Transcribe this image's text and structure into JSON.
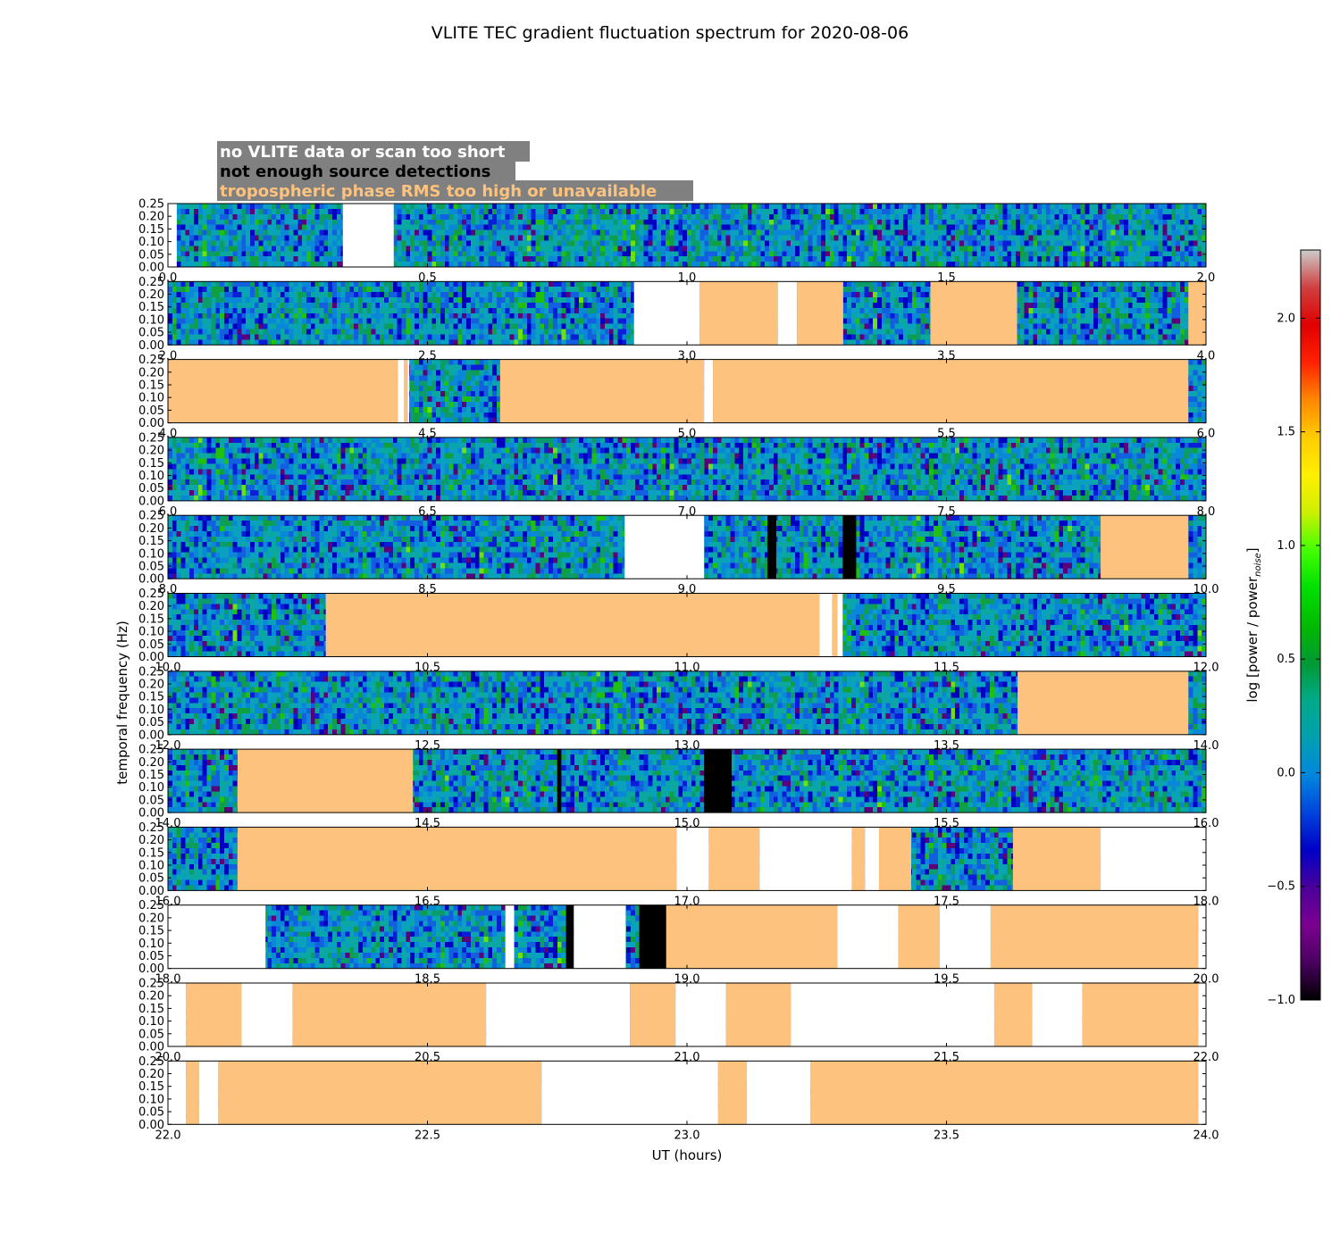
{
  "chart_data": {
    "type": "heatmap",
    "title": "VLITE TEC gradient fluctuation spectrum for 2020-08-06",
    "xlabel": "UT (hours)",
    "ylabel": "temporal frequency (Hz)",
    "ylim": [
      0,
      0.25
    ],
    "y_ticks": [
      "0.00",
      "0.05",
      "0.10",
      "0.15",
      "0.20",
      "0.25"
    ],
    "colorbar": {
      "label": "log [power / power",
      "label_sub": "noise",
      "label_close": "]",
      "range": [
        -1.0,
        2.3
      ],
      "ticks": [
        "−1.0",
        "−0.5",
        "0.0",
        "0.5",
        "1.0",
        "1.5",
        "2.0"
      ],
      "tick_values": [
        -1.0,
        -0.5,
        0.0,
        0.5,
        1.0,
        1.5,
        2.0
      ]
    },
    "legend": {
      "entries": [
        {
          "label": "no VLITE data or scan too short",
          "color": "#ffffff"
        },
        {
          "label": "not enough source detections",
          "color": "#000000"
        },
        {
          "label": "tropospheric phase RMS too high or unavailable",
          "color": "#fdc37e"
        }
      ],
      "background": "#808080",
      "placement": "top-left"
    },
    "mask_colors": {
      "nodata": "#ffffff",
      "nodet": "#000000",
      "tropo": "#fdc37e"
    },
    "panels": [
      {
        "xlim": [
          0.0,
          2.0
        ],
        "xticks": [
          "0.0",
          "0.5",
          "1.0",
          "1.5",
          "2.0"
        ],
        "masks": [
          {
            "type": "nodata",
            "start": 0.0,
            "end": 0.017
          },
          {
            "type": "nodata",
            "start": 0.337,
            "end": 0.435
          }
        ]
      },
      {
        "xlim": [
          2.0,
          4.0
        ],
        "xticks": [
          "2.0",
          "2.5",
          "3.0",
          "3.5",
          "4.0"
        ],
        "masks": [
          {
            "type": "nodata",
            "start": 2.898,
            "end": 3.024
          },
          {
            "type": "tropo",
            "start": 3.024,
            "end": 3.175
          },
          {
            "type": "nodata",
            "start": 3.175,
            "end": 3.212
          },
          {
            "type": "tropo",
            "start": 3.212,
            "end": 3.301
          },
          {
            "type": "tropo",
            "start": 3.469,
            "end": 3.636
          },
          {
            "type": "tropo",
            "start": 3.966,
            "end": 4.0
          }
        ]
      },
      {
        "xlim": [
          4.0,
          6.0
        ],
        "xticks": [
          "4.0",
          "4.5",
          "5.0",
          "5.5",
          "6.0"
        ],
        "masks": [
          {
            "type": "tropo",
            "start": 4.0,
            "end": 4.443
          },
          {
            "type": "nodata",
            "start": 4.443,
            "end": 4.455
          },
          {
            "type": "tropo",
            "start": 4.455,
            "end": 4.462
          },
          {
            "type": "nodata",
            "start": 4.462,
            "end": 4.465
          },
          {
            "type": "tropo",
            "start": 4.64,
            "end": 5.033
          },
          {
            "type": "nodata",
            "start": 5.033,
            "end": 5.05
          },
          {
            "type": "tropo",
            "start": 5.05,
            "end": 5.966
          }
        ]
      },
      {
        "xlim": [
          6.0,
          8.0
        ],
        "xticks": [
          "6.0",
          "6.5",
          "7.0",
          "7.5",
          "8.0"
        ],
        "masks": []
      },
      {
        "xlim": [
          8.0,
          10.0
        ],
        "xticks": [
          "8.0",
          "8.5",
          "9.0",
          "9.5",
          "10.0"
        ],
        "masks": [
          {
            "type": "nodata",
            "start": 8.88,
            "end": 9.033
          },
          {
            "type": "nodet",
            "start": 9.155,
            "end": 9.172
          },
          {
            "type": "nodet",
            "start": 9.3,
            "end": 9.326
          },
          {
            "type": "tropo",
            "start": 9.797,
            "end": 9.966
          }
        ]
      },
      {
        "xlim": [
          10.0,
          12.0
        ],
        "xticks": [
          "10.0",
          "10.5",
          "11.0",
          "11.5",
          "12.0"
        ],
        "masks": [
          {
            "type": "tropo",
            "start": 10.304,
            "end": 11.255
          },
          {
            "type": "nodata",
            "start": 11.255,
            "end": 11.28
          },
          {
            "type": "tropo",
            "start": 11.28,
            "end": 11.29
          },
          {
            "type": "nodata",
            "start": 11.29,
            "end": 11.3
          }
        ]
      },
      {
        "xlim": [
          12.0,
          14.0
        ],
        "xticks": [
          "12.0",
          "12.5",
          "13.0",
          "13.5",
          "14.0"
        ],
        "masks": [
          {
            "type": "tropo",
            "start": 13.637,
            "end": 13.966
          }
        ]
      },
      {
        "xlim": [
          14.0,
          16.0
        ],
        "xticks": [
          "14.0",
          "14.5",
          "15.0",
          "15.5",
          "16.0"
        ],
        "masks": [
          {
            "type": "tropo",
            "start": 14.134,
            "end": 14.472
          },
          {
            "type": "nodet",
            "start": 14.75,
            "end": 14.758
          },
          {
            "type": "nodet",
            "start": 15.033,
            "end": 15.086
          }
        ]
      },
      {
        "xlim": [
          16.0,
          18.0
        ],
        "xticks": [
          "16.0",
          "16.5",
          "17.0",
          "17.5",
          "18.0"
        ],
        "masks": [
          {
            "type": "tropo",
            "start": 16.134,
            "end": 16.98
          },
          {
            "type": "nodata",
            "start": 16.98,
            "end": 17.042
          },
          {
            "type": "tropo",
            "start": 17.042,
            "end": 17.14
          },
          {
            "type": "nodata",
            "start": 17.14,
            "end": 17.318
          },
          {
            "type": "tropo",
            "start": 17.318,
            "end": 17.343
          },
          {
            "type": "nodata",
            "start": 17.343,
            "end": 17.37
          },
          {
            "type": "tropo",
            "start": 17.37,
            "end": 17.432
          },
          {
            "type": "tropo",
            "start": 17.628,
            "end": 17.797
          },
          {
            "type": "nodata",
            "start": 17.797,
            "end": 18.0
          }
        ]
      },
      {
        "xlim": [
          18.0,
          20.0
        ],
        "xticks": [
          "18.0",
          "18.5",
          "19.0",
          "19.5",
          "20.0"
        ],
        "masks": [
          {
            "type": "nodata",
            "start": 18.0,
            "end": 18.188
          },
          {
            "type": "nodata",
            "start": 18.65,
            "end": 18.667
          },
          {
            "type": "nodet",
            "start": 18.767,
            "end": 18.782
          },
          {
            "type": "nodata",
            "start": 18.782,
            "end": 18.882
          },
          {
            "type": "nodet",
            "start": 18.908,
            "end": 18.96
          },
          {
            "type": "tropo",
            "start": 18.96,
            "end": 19.29
          },
          {
            "type": "nodata",
            "start": 19.29,
            "end": 19.407
          },
          {
            "type": "tropo",
            "start": 19.407,
            "end": 19.487
          },
          {
            "type": "nodata",
            "start": 19.487,
            "end": 19.585
          },
          {
            "type": "tropo",
            "start": 19.585,
            "end": 19.985
          },
          {
            "type": "nodata",
            "start": 19.985,
            "end": 20.0
          }
        ]
      },
      {
        "xlim": [
          20.0,
          22.0
        ],
        "xticks": [
          "20.0",
          "20.5",
          "21.0",
          "21.5",
          "22.0"
        ],
        "masks": [
          {
            "type": "nodata",
            "start": 20.0,
            "end": 20.035
          },
          {
            "type": "tropo",
            "start": 20.035,
            "end": 20.142
          },
          {
            "type": "nodata",
            "start": 20.142,
            "end": 20.24
          },
          {
            "type": "tropo",
            "start": 20.24,
            "end": 20.613
          },
          {
            "type": "nodata",
            "start": 20.613,
            "end": 20.89
          },
          {
            "type": "tropo",
            "start": 20.89,
            "end": 20.978
          },
          {
            "type": "nodata",
            "start": 20.978,
            "end": 21.075
          },
          {
            "type": "tropo",
            "start": 21.075,
            "end": 21.2
          },
          {
            "type": "nodata",
            "start": 21.2,
            "end": 21.592
          },
          {
            "type": "tropo",
            "start": 21.592,
            "end": 21.665
          },
          {
            "type": "nodata",
            "start": 21.665,
            "end": 21.762
          },
          {
            "type": "tropo",
            "start": 21.762,
            "end": 21.985
          },
          {
            "type": "nodata",
            "start": 21.985,
            "end": 22.0
          }
        ]
      },
      {
        "xlim": [
          22.0,
          24.0
        ],
        "xticks": [
          "22.0",
          "22.5",
          "23.0",
          "23.5",
          "24.0"
        ],
        "masks": [
          {
            "type": "nodata",
            "start": 22.0,
            "end": 22.035
          },
          {
            "type": "tropo",
            "start": 22.035,
            "end": 22.06
          },
          {
            "type": "nodata",
            "start": 22.06,
            "end": 22.097
          },
          {
            "type": "tropo",
            "start": 22.097,
            "end": 22.72
          },
          {
            "type": "nodata",
            "start": 22.72,
            "end": 23.06
          },
          {
            "type": "tropo",
            "start": 23.06,
            "end": 23.115
          },
          {
            "type": "nodata",
            "start": 23.115,
            "end": 23.238
          },
          {
            "type": "tropo",
            "start": 23.238,
            "end": 23.985
          },
          {
            "type": "nodata",
            "start": 23.985,
            "end": 24.0
          }
        ]
      }
    ]
  }
}
